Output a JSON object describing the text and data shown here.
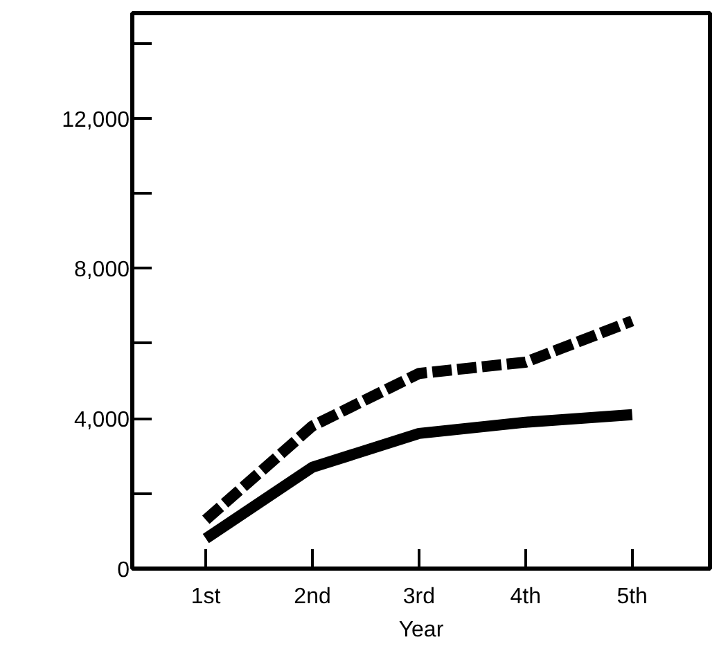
{
  "chart_data": {
    "type": "line",
    "xlabel": "Year",
    "categories": [
      "1st",
      "2nd",
      "3rd",
      "4th",
      "5th"
    ],
    "series": [
      {
        "color": "#000000",
        "line_style": "dashed",
        "values": [
          1300,
          3800,
          5200,
          5500,
          6600
        ]
      },
      {
        "color": "#000000",
        "line_style": "solid",
        "values": [
          800,
          2700,
          3600,
          3900,
          4100
        ]
      }
    ],
    "ylim": [
      0,
      14800
    ],
    "yticks": [
      0,
      {
        "value": 2000,
        "label": null
      },
      "4,000",
      {
        "value": 6000,
        "label": null
      },
      {
        "value": 8000,
        "label": "8,000"
      },
      {
        "value": 10000,
        "label": null
      },
      {
        "value": 12000,
        "label": "12,000"
      },
      {
        "value": 14000,
        "label": null
      }
    ],
    "grid": false,
    "marker": "none"
  }
}
